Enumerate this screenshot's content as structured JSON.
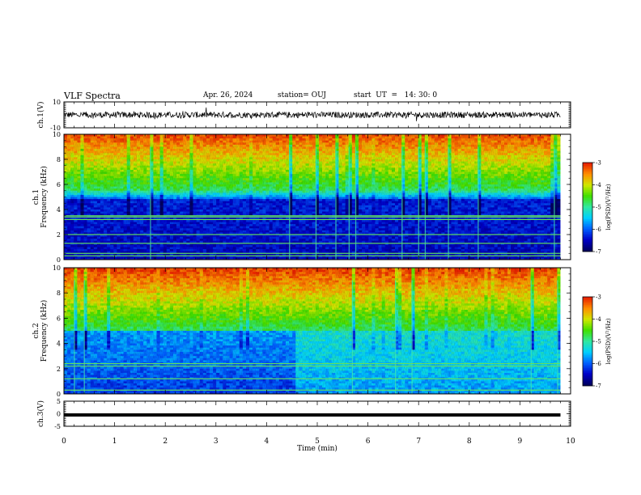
{
  "header": {
    "title": "VLF Spectra",
    "date": "Apr. 26, 2024",
    "station": "station= OUJ",
    "start": "start  UT  =   14: 30: 0"
  },
  "chart_data": [
    {
      "type": "line",
      "name": "ch.1 waveform",
      "ylabel": "ch.1(V)",
      "ylim": [
        -10,
        10
      ],
      "yticks": [
        "10",
        "-10"
      ],
      "x_range_min": [
        0,
        9.8
      ],
      "approx_level": 0,
      "noise_amplitude": 3
    },
    {
      "type": "heatmap",
      "ylabel": "ch.1 Frequency (kHz)",
      "ylim": [
        0,
        10
      ],
      "yticks": [
        "0",
        "2",
        "4",
        "6",
        "8",
        "10"
      ],
      "x_range_min": [
        0,
        9.8
      ],
      "colorbar": {
        "label": "log(PSD)(V²/Hz)",
        "ticks": [
          "-3",
          "-4",
          "-5",
          "-6",
          "-7"
        ],
        "range": [
          -7,
          -3
        ]
      },
      "colormap": [
        "#000060",
        "#0000c8",
        "#0060ff",
        "#00d0ff",
        "#30e8a0",
        "#40e000",
        "#d0e800",
        "#ff9000",
        "#e82000"
      ]
    },
    {
      "type": "heatmap",
      "ylabel": "ch.2 Frequency (kHz)",
      "ylim": [
        0,
        10
      ],
      "yticks": [
        "0",
        "2",
        "4",
        "6",
        "8",
        "10"
      ],
      "x_range_min": [
        0,
        9.8
      ],
      "colorbar": {
        "label": "log(PSD)(V²/Hz)",
        "ticks": [
          "-3",
          "-4",
          "-5",
          "-6",
          "-7"
        ],
        "range": [
          -7,
          -3
        ]
      },
      "colormap": [
        "#000060",
        "#0000c8",
        "#0060ff",
        "#00d0ff",
        "#30e8a0",
        "#40e000",
        "#d0e800",
        "#ff9000",
        "#e82000"
      ]
    },
    {
      "type": "line",
      "name": "ch.3 waveform",
      "ylabel": "ch.3(V)",
      "ylim": [
        -5,
        5
      ],
      "yticks": [
        "5",
        "0",
        "-5"
      ],
      "x_range_min": [
        0,
        9.8
      ],
      "approx_level": -0.5
    }
  ],
  "xaxis": {
    "label": "Time (min)",
    "ticks": [
      "0",
      "1",
      "2",
      "3",
      "4",
      "5",
      "6",
      "7",
      "8",
      "9",
      "10"
    ],
    "range": [
      0,
      10
    ]
  }
}
